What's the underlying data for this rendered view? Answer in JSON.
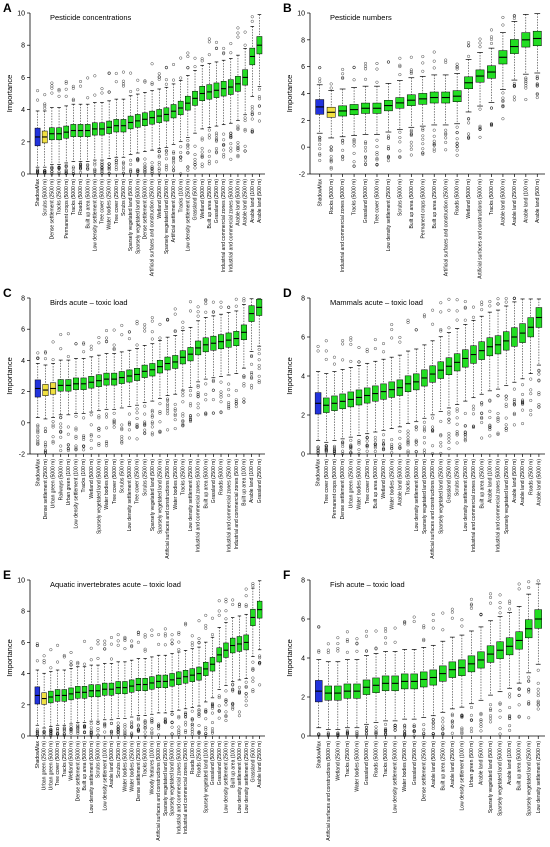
{
  "figure": {
    "background": "#ffffff"
  },
  "colors": {
    "shadow": "#2233dd",
    "tentative": "#f0e040",
    "confirmed": "#22dd22"
  },
  "chart_data": [
    {
      "type": "box",
      "panel_letter": "A",
      "title": "Pesticide concentrations",
      "ylabel": "Importance",
      "ylim": [
        0,
        10
      ],
      "yticks": [
        0,
        2,
        4,
        6,
        8,
        10
      ],
      "categories": [
        "ShadowMax",
        "Scrubs (5000 m)",
        "Dense settlement (2500 m)",
        "Tracks (2500 m)",
        "Permanent crops (5000 m)",
        "Tracks (5000 m)",
        "Roads (5000 m)",
        "Built up area (5000 m)",
        "Low density settlement (5000 m)",
        "Tree cover (5000 m)",
        "Water bodies (2500 m)",
        "Tree cover (2500 m)",
        "Scrubs (2500 m)",
        "Sparsely vegetated land (500 m)",
        "Sparsely vegetated land (5000 m)",
        "Dense settlement (5000 m)",
        "Artificial surfaces and construction (2500 m)",
        "Wetland (2500 m)",
        "Sparsely vegetated land (2500 m)",
        "Artificial settlement (2500 m)",
        "Tracks (100 m)",
        "Low density settlement (2500 m)",
        "Grassland (500 m)",
        "Wetland (5000 m)",
        "Built up area (2500 m)",
        "Grassland (2500 m)",
        "Industrial and commercial zones (2500 m)",
        "Industrial and commercial zones (5000 m)",
        "Arable land (5000 m)",
        "Arable land (2500 m)",
        "Arable land (100 m)",
        "Arable land (500 m)"
      ],
      "medians": [
        2.3,
        2.3,
        2.5,
        2.5,
        2.6,
        2.7,
        2.7,
        2.7,
        2.8,
        2.8,
        2.9,
        3.0,
        3.0,
        3.2,
        3.3,
        3.4,
        3.5,
        3.6,
        3.7,
        3.9,
        4.1,
        4.4,
        4.7,
        5.0,
        5.1,
        5.2,
        5.3,
        5.4,
        5.6,
        6.0,
        7.3,
        8.0
      ],
      "box_colors": [
        "shadow",
        "tentative",
        "confirmed",
        "confirmed",
        "confirmed",
        "confirmed",
        "confirmed",
        "confirmed",
        "confirmed",
        "confirmed",
        "confirmed",
        "confirmed",
        "confirmed",
        "confirmed",
        "confirmed",
        "confirmed",
        "confirmed",
        "confirmed",
        "confirmed",
        "confirmed",
        "confirmed",
        "confirmed",
        "confirmed",
        "confirmed",
        "confirmed",
        "confirmed",
        "confirmed",
        "confirmed",
        "confirmed",
        "confirmed",
        "confirmed",
        "confirmed"
      ]
    },
    {
      "type": "box",
      "panel_letter": "B",
      "title": "Pesticide numbers",
      "ylabel": "Importance",
      "ylim": [
        -2,
        10
      ],
      "yticks": [
        -2,
        0,
        2,
        4,
        6,
        8,
        10
      ],
      "categories": [
        "ShadowMax",
        "Rocks (5000 m)",
        "Industrial and commercial zones (5000 m)",
        "Tracks (5000 m)",
        "Grassland (5000 m)",
        "Tree cover (5000 m)",
        "Low density settlement (2500 m)",
        "Scrubs (5000 m)",
        "Built up area (5000 m)",
        "Permanent crops (5000 m)",
        "Built up area (2500 m)",
        "Artificial surfaces and construction (2500 m)",
        "Roads (5000 m)",
        "Wetland (5000 m)",
        "Artificial surfaces and constructions (5000 m)",
        "Tracks (5000 m)",
        "Arable land (5000 m)",
        "Arable land (2500 m)",
        "Arable land (100 m)",
        "Arable land (500 m)"
      ],
      "medians": [
        3.0,
        2.6,
        2.7,
        2.8,
        2.9,
        2.9,
        3.1,
        3.3,
        3.5,
        3.6,
        3.7,
        3.7,
        3.8,
        4.8,
        5.3,
        5.6,
        6.7,
        7.5,
        8.0,
        8.1
      ],
      "box_colors": [
        "shadow",
        "tentative",
        "confirmed",
        "confirmed",
        "confirmed",
        "confirmed",
        "confirmed",
        "confirmed",
        "confirmed",
        "confirmed",
        "confirmed",
        "confirmed",
        "confirmed",
        "confirmed",
        "confirmed",
        "confirmed",
        "confirmed",
        "confirmed",
        "confirmed",
        "confirmed"
      ]
    },
    {
      "type": "box",
      "panel_letter": "C",
      "title": "Birds acute – toxic load",
      "ylabel": "Importance",
      "ylim": [
        -2,
        8
      ],
      "yticks": [
        -2,
        0,
        2,
        4,
        6,
        8
      ],
      "categories": [
        "ShadowMax",
        "Dense settlement (2500 m)",
        "Urban green (5000 m)",
        "Railways (5000 m)",
        "Urban green (100 m)",
        "Low density settlement (100 m)",
        "Tracks (100 m)",
        "Wetland (5000 m)",
        "Sparsely vegetated land (5000 m)",
        "Water bodies (5000 m)",
        "Tree cover (5000 m)",
        "Scrubs (500 m)",
        "Low density settlement (5000 m)",
        "Tree cover (2500 m)",
        "Scrubs (2500 m)",
        "Sparsely vegetated land (500 m)",
        "Sparsely vegetated land (2500 m)",
        "Artificial surfaces and constructions (2500 m)",
        "Water bodies (2500 m)",
        "Tracks (2500 m)",
        "Low density settlement (2500 m)",
        "Industrial and commercial zones (5000 m)",
        "Built up area (5000 m)",
        "Grassland (2500 m)",
        "Roads (5000 m)",
        "Industrial and commercial zones (2500 m)",
        "Industrial and commercial zones (500 m)",
        "Built up area (100 m)",
        "Arable land (100 m)",
        "Grassland (2500 m)"
      ],
      "medians": [
        2.2,
        2.1,
        2.2,
        2.4,
        2.4,
        2.5,
        2.5,
        2.6,
        2.7,
        2.8,
        2.8,
        2.9,
        3.0,
        3.1,
        3.3,
        3.4,
        3.6,
        3.8,
        3.9,
        4.2,
        4.4,
        4.8,
        5.0,
        5.1,
        5.2,
        5.3,
        5.4,
        5.8,
        7.0,
        7.4
      ],
      "box_colors": [
        "shadow",
        "tentative",
        "tentative",
        "confirmed",
        "confirmed",
        "confirmed",
        "confirmed",
        "confirmed",
        "confirmed",
        "confirmed",
        "confirmed",
        "confirmed",
        "confirmed",
        "confirmed",
        "confirmed",
        "confirmed",
        "confirmed",
        "confirmed",
        "confirmed",
        "confirmed",
        "confirmed",
        "confirmed",
        "confirmed",
        "confirmed",
        "confirmed",
        "confirmed",
        "confirmed",
        "confirmed",
        "confirmed",
        "confirmed"
      ]
    },
    {
      "type": "box",
      "panel_letter": "D",
      "title": "Mammals acute – toxic load",
      "ylabel": "Importance",
      "ylim": [
        0,
        8
      ],
      "yticks": [
        0,
        2,
        4,
        6,
        8
      ],
      "categories": [
        "ShadowMax",
        "Tree cover (5000 m)",
        "Permanent crops (5000 m)",
        "Dense settlement (5000 m)",
        "Urban green (2500 m)",
        "Water bodies (5000 m)",
        "Tree cover (2500 m)",
        "Built up area (5000 m)",
        "Wetland (2500 m)",
        "Water bodies (2500 m)",
        "Arable land (5000 m)",
        "Tracks (5000 m)",
        "Low density settlement (5000 m)",
        "Sparsely vegetated land (5000 m)",
        "Artificial surfaces and constructions (2500 m)",
        "Sparsely vegetated land (2500 m)",
        "Grassland (2500 m)",
        "Scrubs (2500 m)",
        "Low density settlement (2500 m)",
        "Industrial and commercial zones (2500 m)",
        "Built up area (2500 m)",
        "Arable land (100 m)",
        "Industrial and commercial zones (5000 m)",
        "Sparsely vegetated land (2500 m)",
        "Arable land (500 m)",
        "Arable land (2500 m)",
        "Roads (2500 m)",
        "Arable land (5000 m)"
      ],
      "medians": [
        2.6,
        2.5,
        2.6,
        2.7,
        2.8,
        2.9,
        3.0,
        3.1,
        3.2,
        3.3,
        3.4,
        3.6,
        3.7,
        3.9,
        4.1,
        4.3,
        4.5,
        4.7,
        4.9,
        5.1,
        5.3,
        5.5,
        5.6,
        5.8,
        6.0,
        6.2,
        6.5,
        7.0
      ],
      "box_colors": [
        "shadow",
        "confirmed",
        "confirmed",
        "confirmed",
        "confirmed",
        "confirmed",
        "confirmed",
        "confirmed",
        "confirmed",
        "confirmed",
        "confirmed",
        "confirmed",
        "confirmed",
        "confirmed",
        "confirmed",
        "confirmed",
        "confirmed",
        "confirmed",
        "confirmed",
        "confirmed",
        "confirmed",
        "confirmed",
        "confirmed",
        "confirmed",
        "confirmed",
        "confirmed",
        "confirmed",
        "confirmed"
      ]
    },
    {
      "type": "box",
      "panel_letter": "E",
      "title": "Aquatic invertebrates acute – toxic load",
      "ylabel": "Importance",
      "ylim": [
        0,
        10
      ],
      "yticks": [
        0,
        2,
        4,
        6,
        8,
        10
      ],
      "categories": [
        "ShadowMax",
        "Urban green (2500 m)",
        "Urban green (5000 m)",
        "Tree cover (5000 m)",
        "Tracks (2500 m)",
        "Wetland (5000 m)",
        "Dense settlement (5000 m)",
        "Built up area (5000 m)",
        "Low density settlement (5000 m)",
        "Scrubs (5000 m)",
        "Low density settlement (100 m)",
        "Arable land (5000 m)",
        "Scrubs (2500 m)",
        "Water bodies (5000 m)",
        "Water bodies (2500 m)",
        "Dense settlement (2500 m)",
        "Tracks (5000 m)",
        "Woody features (100 m)",
        "Artificial surfaces and constructions (5000 m)",
        "Sparsely vegetated land (2500 m)",
        "Sparsely vegetated land (5000 m)",
        "Industrial and commercial zones (5000 m)",
        "Industrial and commercial zones (2500 m)",
        "Roads (100 m)",
        "Roads (2500 m)",
        "Sparsely vegetated land (100 m)",
        "Grassland (5000 m)",
        "Grassland (2500 m)",
        "Low density settlement (2500 m)",
        "Built up area (100 m)",
        "Low density settlement (5000 m)",
        "Low density settlement (2500 m)",
        "Grassland (500 m)",
        "Arable land (2500 m)"
      ],
      "medians": [
        2.6,
        2.4,
        2.5,
        2.6,
        2.6,
        2.7,
        2.8,
        2.8,
        2.9,
        2.9,
        3.0,
        3.0,
        3.1,
        3.1,
        3.2,
        3.3,
        3.3,
        3.4,
        3.5,
        3.5,
        3.6,
        3.7,
        3.8,
        3.9,
        4.0,
        4.3,
        4.6,
        5.2,
        5.5,
        5.8,
        5.9,
        6.0,
        7.6,
        8.1
      ],
      "box_colors": [
        "shadow",
        "tentative",
        "confirmed",
        "confirmed",
        "confirmed",
        "confirmed",
        "confirmed",
        "confirmed",
        "confirmed",
        "confirmed",
        "confirmed",
        "confirmed",
        "confirmed",
        "confirmed",
        "confirmed",
        "confirmed",
        "confirmed",
        "confirmed",
        "confirmed",
        "confirmed",
        "confirmed",
        "confirmed",
        "confirmed",
        "confirmed",
        "confirmed",
        "confirmed",
        "confirmed",
        "confirmed",
        "confirmed",
        "confirmed",
        "confirmed",
        "confirmed",
        "confirmed",
        "confirmed"
      ]
    },
    {
      "type": "box",
      "panel_letter": "F",
      "title": "Fish acute – toxic load",
      "ylabel": "Importance",
      "ylim": [
        0,
        8
      ],
      "yticks": [
        0,
        2,
        4,
        6,
        8
      ],
      "categories": [
        "ShadowMax",
        "Artificial surfaces and constructions (5000 m)",
        "Wetland (2500 m)",
        "Tracks (2500 m)",
        "Water bodies (5000 m)",
        "Grassland (5000 m)",
        "Roads (5000 m)",
        "Tracks (5000 m)",
        "Low density settlement (5000 m)",
        "Water bodies (2500 m)",
        "Grassland (2500 m)",
        "Dense settlement (2500 m)",
        "Arable land (5000 m)",
        "Built up area (2500 m)",
        "Arable land (2500 m)",
        "Low density settlement (100 m)",
        "Urban green (500 m)",
        "Arable land (500 m)",
        "Sparsely vegetated land (500 m)",
        "Sparsely vegetated land (5000 m)",
        "Arable land (100 m)",
        "Built up area (5000 m)",
        "Sparsely vegetated land (2500 m)",
        "Low density settlement (2500 m)"
      ],
      "medians": [
        2.3,
        2.2,
        2.2,
        2.3,
        2.3,
        2.5,
        2.6,
        2.7,
        2.7,
        2.8,
        2.8,
        2.9,
        3.0,
        3.2,
        3.4,
        3.5,
        3.7,
        3.9,
        4.2,
        4.4,
        4.6,
        4.9,
        5.5,
        6.0
      ],
      "box_colors": [
        "shadow",
        "confirmed",
        "confirmed",
        "confirmed",
        "confirmed",
        "confirmed",
        "confirmed",
        "confirmed",
        "confirmed",
        "confirmed",
        "confirmed",
        "confirmed",
        "confirmed",
        "confirmed",
        "confirmed",
        "confirmed",
        "confirmed",
        "confirmed",
        "confirmed",
        "confirmed",
        "confirmed",
        "confirmed",
        "confirmed",
        "confirmed"
      ]
    }
  ]
}
